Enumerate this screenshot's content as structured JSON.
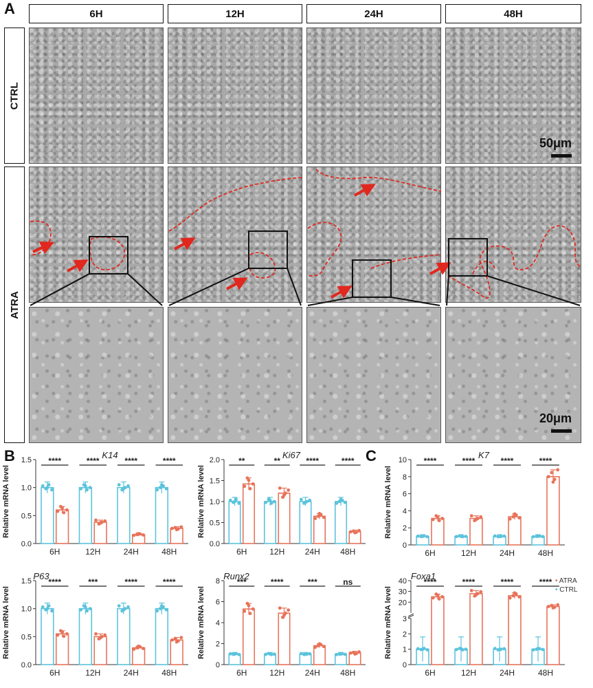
{
  "panels": {
    "a": "A",
    "b": "B",
    "c": "C"
  },
  "columns": [
    "6H",
    "12H",
    "24H",
    "48H"
  ],
  "rows": {
    "ctrl": "CTRL",
    "atra": "ATRA"
  },
  "scale_bars": {
    "upper": "50μm",
    "lower": "20μm"
  },
  "legend": {
    "atra": "ATRA",
    "ctrl": "CTRL"
  },
  "colors": {
    "atra": "#E8735A",
    "ctrl": "#5BC3DC",
    "outline": "#E0281E"
  },
  "chart_data": [
    {
      "type": "bar",
      "id": "k14",
      "title": "K14",
      "ylabel": "Relative mRNA level",
      "ylim": [
        0,
        1.5
      ],
      "yticks": [
        "0.0",
        "0.5",
        "1.0",
        "1.5"
      ],
      "categories": [
        "6H",
        "12H",
        "24H",
        "48H"
      ],
      "series": [
        {
          "name": "CTRL",
          "values": [
            1.0,
            1.0,
            1.0,
            1.0
          ]
        },
        {
          "name": "ATRA",
          "values": [
            0.6,
            0.38,
            0.16,
            0.27
          ]
        }
      ],
      "significance": [
        "****",
        "****",
        "****",
        "****"
      ]
    },
    {
      "type": "bar",
      "id": "ki67",
      "title": "Ki67",
      "ylabel": "Relative mRNA level",
      "ylim": [
        0,
        2.0
      ],
      "yticks": [
        "0.0",
        "0.5",
        "1.0",
        "1.5",
        "2.0"
      ],
      "categories": [
        "6H",
        "12H",
        "24H",
        "48H"
      ],
      "series": [
        {
          "name": "CTRL",
          "values": [
            1.0,
            1.0,
            1.0,
            1.0
          ]
        },
        {
          "name": "ATRA",
          "values": [
            1.42,
            1.2,
            0.65,
            0.28
          ]
        }
      ],
      "significance": [
        "**",
        "**",
        "****",
        "****"
      ]
    },
    {
      "type": "bar",
      "id": "k7",
      "title": "K7",
      "ylabel": "Relative mRNA level",
      "ylim": [
        0,
        10
      ],
      "yticks": [
        "0",
        "2",
        "4",
        "6",
        "8",
        "10"
      ],
      "categories": [
        "6H",
        "12H",
        "24H",
        "48H"
      ],
      "series": [
        {
          "name": "CTRL",
          "values": [
            1.0,
            1.0,
            1.0,
            1.0
          ]
        },
        {
          "name": "ATRA",
          "values": [
            3.1,
            3.1,
            3.3,
            8.0
          ]
        }
      ],
      "significance": [
        "****",
        "****",
        "****",
        "****"
      ]
    },
    {
      "type": "bar",
      "id": "p63",
      "title": "P63",
      "ylabel": "Relative mRNA level",
      "ylim": [
        0,
        1.5
      ],
      "yticks": [
        "0.0",
        "0.5",
        "1.0",
        "1.5"
      ],
      "categories": [
        "6H",
        "12H",
        "24H",
        "48H"
      ],
      "series": [
        {
          "name": "CTRL",
          "values": [
            1.0,
            1.0,
            1.0,
            1.0
          ]
        },
        {
          "name": "ATRA",
          "values": [
            0.55,
            0.5,
            0.3,
            0.44
          ]
        }
      ],
      "significance": [
        "****",
        "***",
        "****",
        "****"
      ]
    },
    {
      "type": "bar",
      "id": "runx2",
      "title": "Runx2",
      "ylabel": "Relative mRNA level",
      "ylim": [
        0,
        8
      ],
      "yticks": [
        "0",
        "2",
        "4",
        "6",
        "8"
      ],
      "categories": [
        "6H",
        "12H",
        "24H",
        "48H"
      ],
      "series": [
        {
          "name": "CTRL",
          "values": [
            1.0,
            1.0,
            1.0,
            1.0
          ]
        },
        {
          "name": "ATRA",
          "values": [
            5.3,
            4.9,
            1.8,
            1.1
          ]
        }
      ],
      "significance": [
        "***",
        "****",
        "***",
        "ns"
      ]
    },
    {
      "type": "bar",
      "id": "foxa1",
      "title": "Foxa1",
      "ylabel": "Relative mRNA level",
      "ylim": [
        0,
        40
      ],
      "yticks": [
        "0",
        "1",
        "2",
        "3",
        "20",
        "30",
        "40"
      ],
      "axis_break": true,
      "categories": [
        "6H",
        "12H",
        "24H",
        "48H"
      ],
      "series": [
        {
          "name": "CTRL",
          "values": [
            1.0,
            1.0,
            1.0,
            1.0
          ]
        },
        {
          "name": "ATRA",
          "values": [
            25,
            28,
            26,
            16
          ]
        }
      ],
      "significance": [
        "****",
        "****",
        "****",
        "****"
      ]
    }
  ]
}
